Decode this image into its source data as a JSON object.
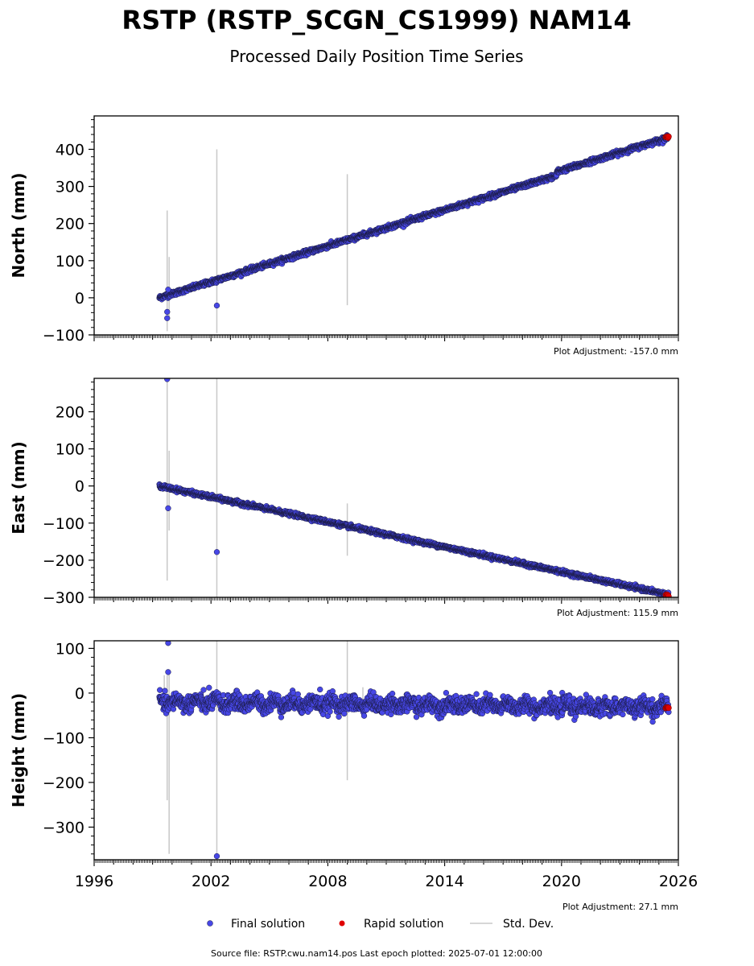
{
  "header": {
    "title": "RSTP (RSTP_SCGN_CS1999) NAM14",
    "subtitle": "Processed Daily Position Time Series"
  },
  "colors": {
    "final": "#4747e6",
    "rapid": "#e00000",
    "stddev": "#c8c8c8",
    "edge": "#1a1a40"
  },
  "chart_data": [
    {
      "type": "scatter",
      "ylabel": "North (mm)",
      "adjustment": "Plot Adjustment: -157.0 mm",
      "xlim": [
        1996,
        2026
      ],
      "ylim": [
        -100,
        490
      ],
      "yticks": [
        -100,
        0,
        100,
        200,
        300,
        400
      ],
      "ytick_labels": [
        "−100",
        "0",
        "100",
        "200",
        "300",
        "400"
      ],
      "trend": {
        "start": [
          1999.35,
          0
        ],
        "rate_before": 16.5,
        "break_year": 2019.75,
        "offset": 10,
        "end_value": 432
      },
      "noise": 3,
      "outliers": [
        [
          1999.75,
          -38
        ],
        [
          1999.75,
          -55
        ],
        [
          2002.3,
          -21
        ],
        [
          1999.8,
          22
        ]
      ],
      "stddev_bars": [
        [
          1999.75,
          -90,
          235
        ],
        [
          1999.85,
          -50,
          110
        ],
        [
          2002.3,
          -95,
          400
        ],
        [
          2009.0,
          -20,
          333
        ]
      ],
      "rapid_end": [
        2025.5,
        433
      ],
      "xtick_labels": [
        "",
        "",
        "",
        "",
        "",
        "",
        ""
      ]
    },
    {
      "type": "scatter",
      "ylabel": "East (mm)",
      "adjustment": "Plot Adjustment: 115.9 mm",
      "xlim": [
        1996,
        2026
      ],
      "ylim": [
        -300,
        290
      ],
      "yticks": [
        -300,
        -200,
        -100,
        0,
        100,
        200
      ],
      "ytick_labels": [
        "−300",
        "−200",
        "−100",
        "0",
        "100",
        "200"
      ],
      "trend": {
        "start": [
          1999.35,
          0
        ],
        "rate_before": -11.5,
        "break_year": 3000,
        "offset": 0,
        "end_value": -293
      },
      "noise": 2.5,
      "outliers": [
        [
          1999.8,
          -60
        ],
        [
          2002.3,
          -178
        ],
        [
          1999.75,
          288
        ]
      ],
      "stddev_bars": [
        [
          1999.75,
          -255,
          290
        ],
        [
          1999.85,
          -120,
          95
        ],
        [
          2002.3,
          -300,
          290
        ],
        [
          2009.0,
          -188,
          -47
        ]
      ],
      "rapid_end": [
        2025.5,
        -294
      ],
      "xtick_labels": [
        "",
        "",
        "",
        "",
        "",
        "",
        ""
      ]
    },
    {
      "type": "scatter",
      "ylabel": "Height (mm)",
      "adjustment": "Plot Adjustment: 27.1 mm",
      "xlim": [
        1996,
        2026
      ],
      "ylim": [
        -373,
        117
      ],
      "yticks": [
        -300,
        -200,
        -100,
        0,
        100
      ],
      "ytick_labels": [
        "−300",
        "−200",
        "−100",
        "0",
        "100"
      ],
      "trend": {
        "start": [
          1999.35,
          -20
        ],
        "rate_before": -0.5,
        "break_year": 3000,
        "offset": 0,
        "end_value": -32
      },
      "noise": 9,
      "outliers": [
        [
          1999.8,
          112
        ],
        [
          1999.8,
          47
        ],
        [
          2002.3,
          -365
        ],
        [
          2001.9,
          12
        ],
        [
          2007.6,
          8
        ]
      ],
      "stddev_bars": [
        [
          1999.75,
          -240,
          40
        ],
        [
          1999.85,
          -360,
          50
        ],
        [
          2002.3,
          -373,
          117
        ],
        [
          2009.0,
          -195,
          117
        ],
        [
          2009.8,
          -30,
          13
        ],
        [
          1999.6,
          -30,
          40
        ]
      ],
      "rapid_end": [
        2025.5,
        -33
      ],
      "xtick_labels": [
        "1996",
        "2002",
        "2008",
        "2014",
        "2020",
        "2026"
      ]
    }
  ],
  "legend": {
    "final": "Final solution",
    "rapid": "Rapid solution",
    "stddev": "Std. Dev."
  },
  "footer": {
    "source": "Source file: RSTP.cwu.nam14.pos  Last epoch plotted: 2025-07-01 12:00:00"
  }
}
